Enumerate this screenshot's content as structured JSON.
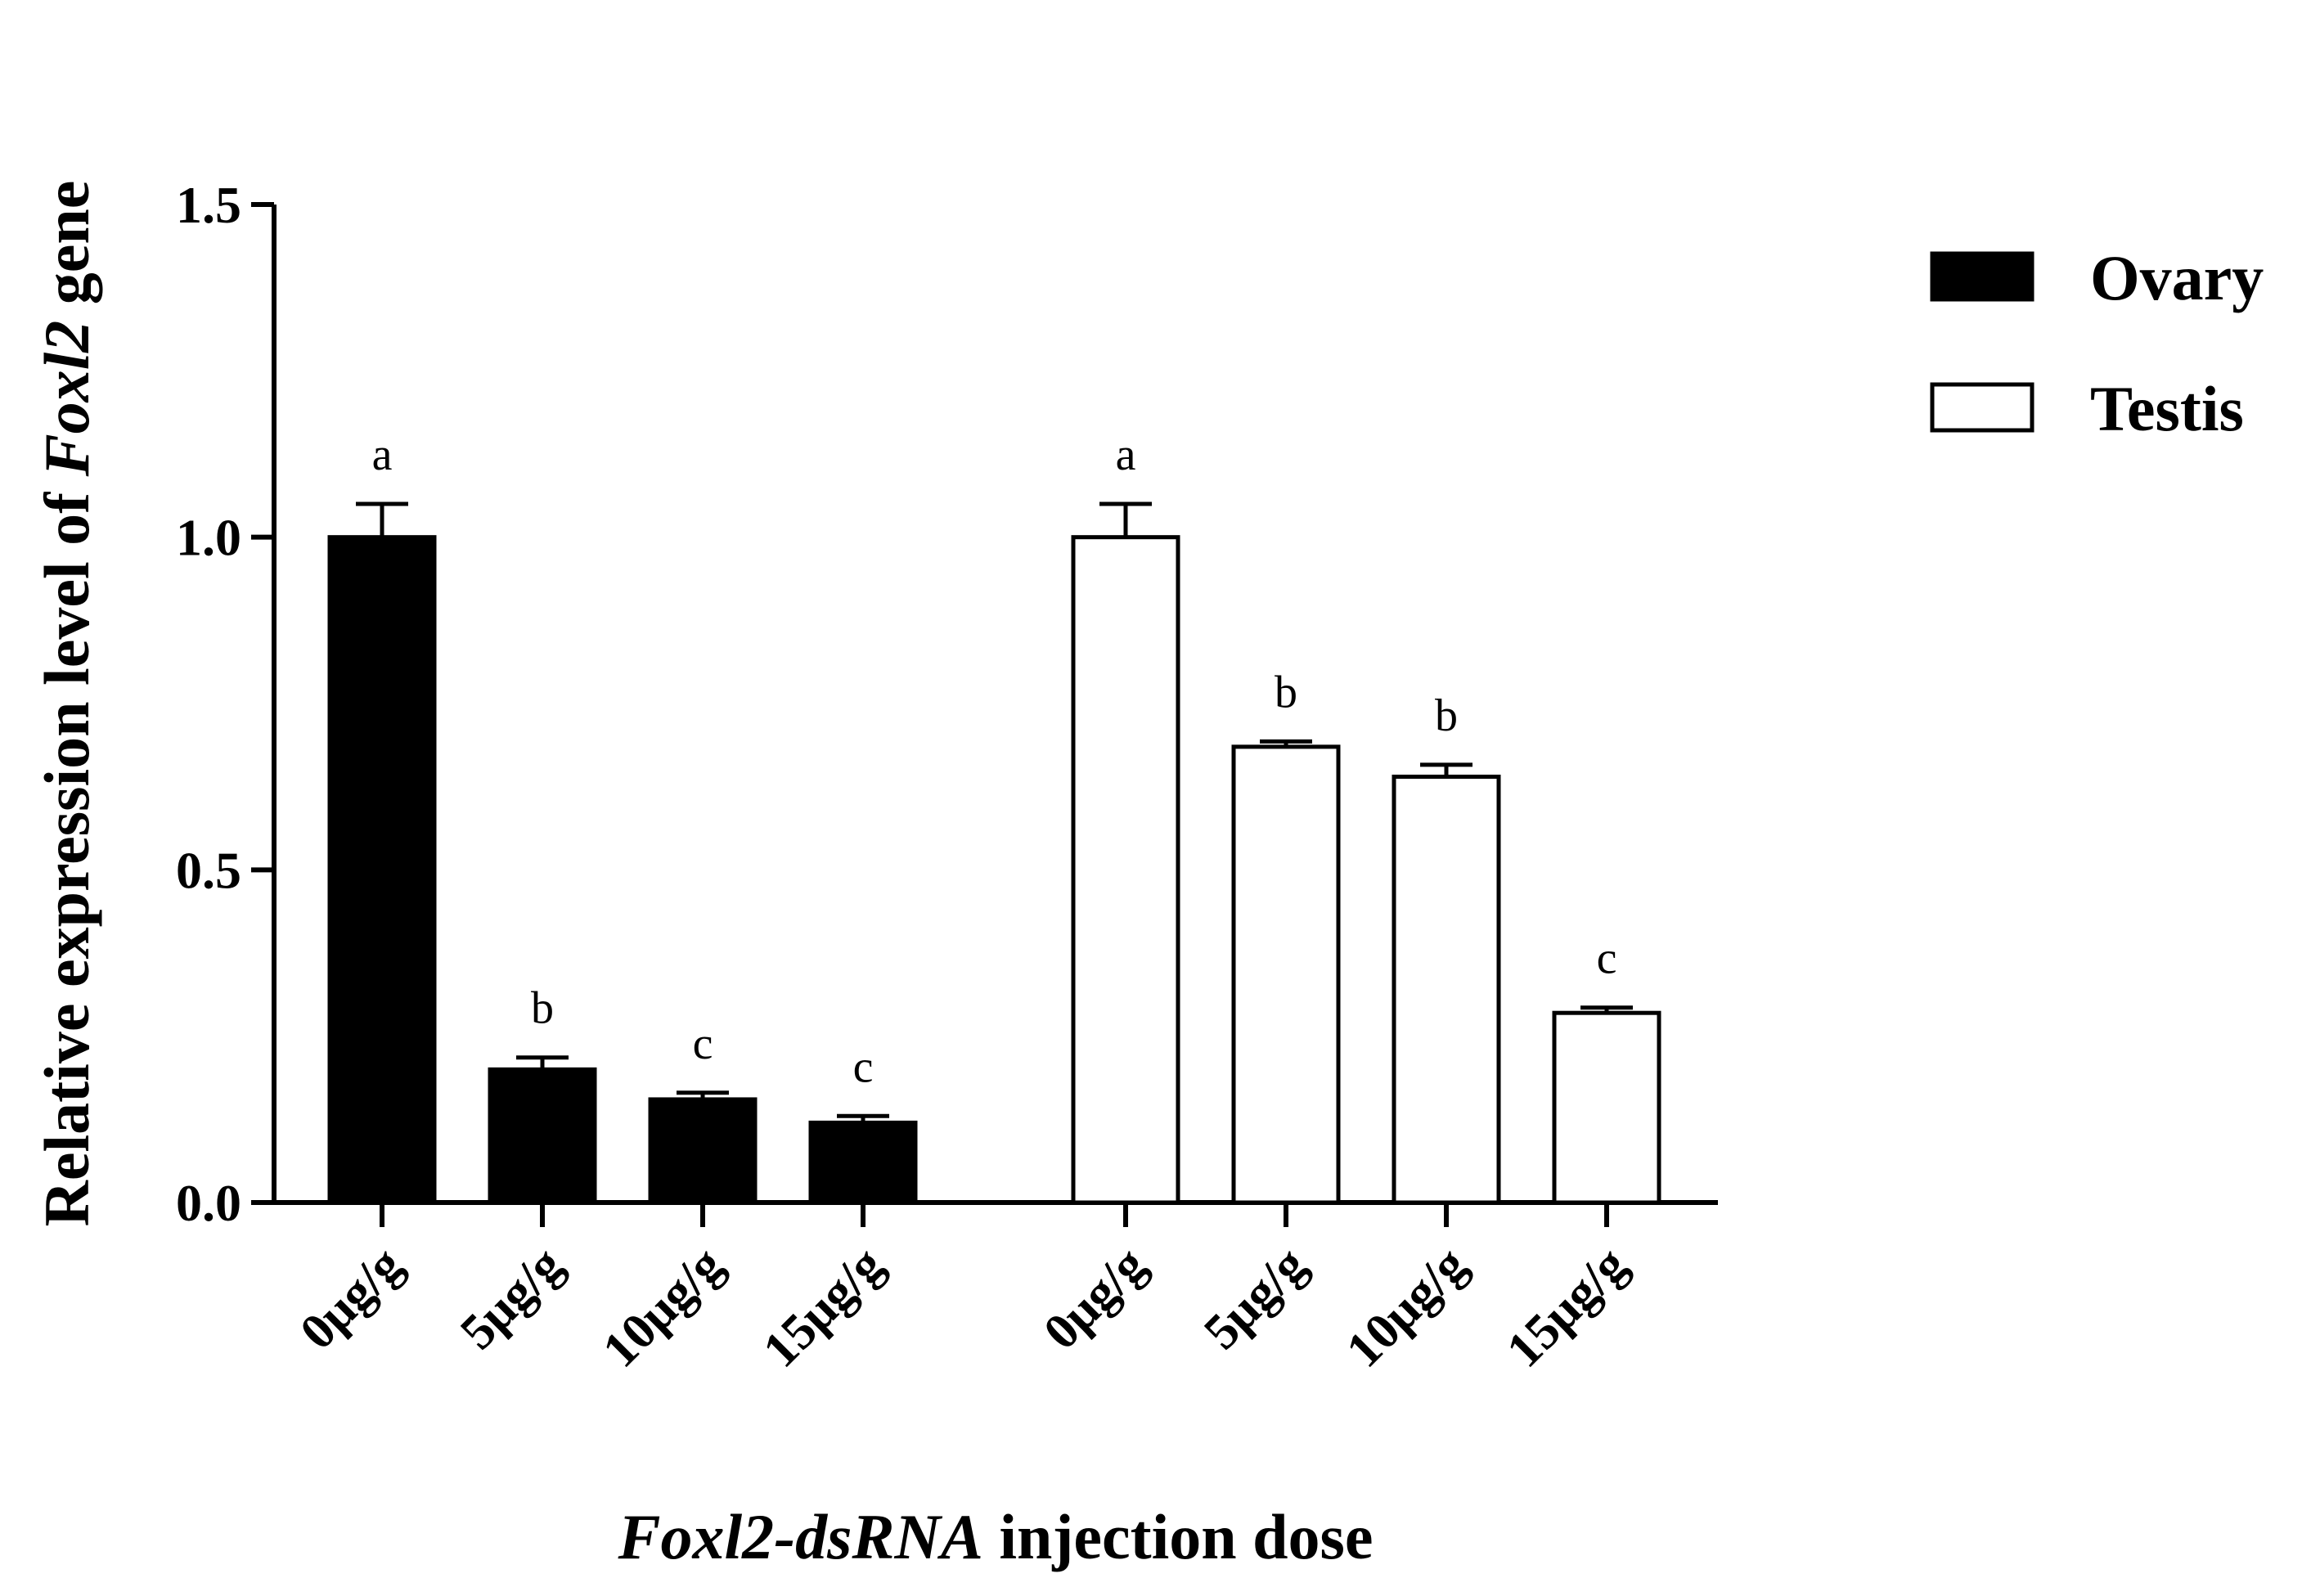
{
  "chart_data": {
    "type": "bar",
    "xlabel": {
      "italic_part": "Foxl2-dsRNA",
      "plain_part": " injection dose"
    },
    "ylabel": {
      "prefix": "Relative expression level of ",
      "italic_part": "Foxl2",
      "suffix": " gene"
    },
    "ylim": [
      0,
      1.5
    ],
    "yticks": [
      "0.0",
      "0.5",
      "1.0",
      "1.5"
    ],
    "ytick_values": [
      0,
      0.5,
      1.0,
      1.5
    ],
    "categories": [
      "0μg/g",
      "5μg/g",
      "10μg/g",
      "15μg/g"
    ],
    "legend_position": "top-right",
    "grid": false,
    "series": [
      {
        "name": "Ovary",
        "fill": "#000000",
        "values": [
          1.0,
          0.2,
          0.155,
          0.12
        ],
        "errors": [
          0.05,
          0.018,
          0.01,
          0.01
        ],
        "significance": [
          "a",
          "b",
          "c",
          "c"
        ]
      },
      {
        "name": "Testis",
        "fill": "#ffffff",
        "values": [
          1.0,
          0.685,
          0.64,
          0.285
        ],
        "errors": [
          0.05,
          0.008,
          0.018,
          0.008
        ],
        "significance": [
          "a",
          "b",
          "b",
          "c"
        ]
      }
    ]
  }
}
